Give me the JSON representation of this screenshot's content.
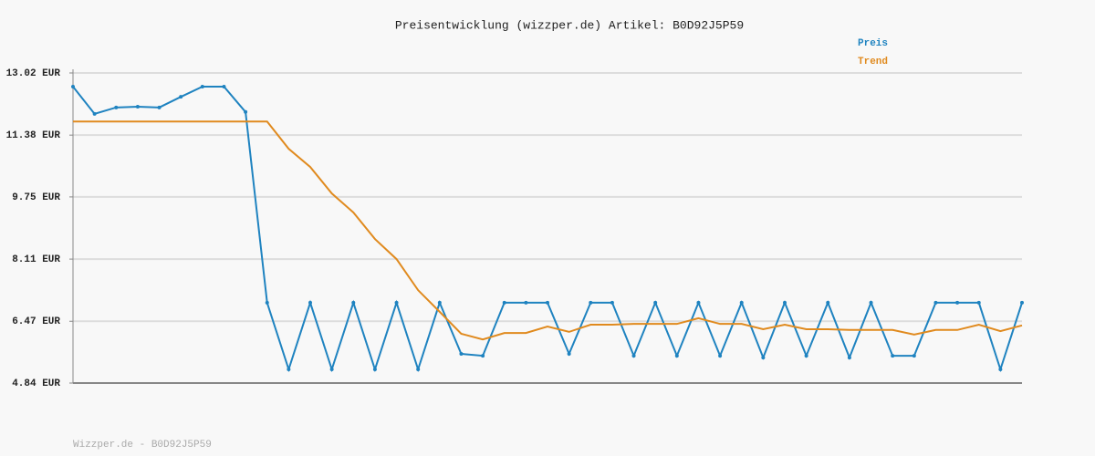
{
  "chart_data": {
    "type": "line",
    "title": "Preisentwicklung (wizzper.de) Artikel: B0D92J5P59",
    "footer": "Wizzper.de - B0D92J5P59",
    "legend": "top-right",
    "grid": true,
    "ylim": [
      4.84,
      13.02
    ],
    "yticks": [
      {
        "value": 4.84,
        "label": "4.84 EUR"
      },
      {
        "value": 6.47,
        "label": "6.47 EUR"
      },
      {
        "value": 8.11,
        "label": "8.11 EUR"
      },
      {
        "value": 9.75,
        "label": "9.75 EUR"
      },
      {
        "value": 11.38,
        "label": "11.38 EUR"
      },
      {
        "value": 13.02,
        "label": "13.02 EUR"
      }
    ],
    "series": [
      {
        "name": "Preis",
        "color": "#1f83c0",
        "markers": true,
        "values": [
          12.66,
          11.94,
          12.11,
          12.13,
          12.11,
          12.39,
          12.66,
          12.66,
          11.99,
          6.96,
          5.2,
          6.96,
          5.2,
          6.96,
          5.2,
          6.96,
          5.2,
          6.96,
          5.61,
          5.56,
          6.96,
          6.96,
          6.96,
          5.61,
          6.96,
          6.96,
          5.56,
          6.96,
          5.56,
          6.96,
          5.56,
          6.96,
          5.51,
          6.96,
          5.56,
          6.96,
          5.51,
          6.96,
          5.56,
          5.56,
          6.96,
          6.96,
          6.96,
          5.2,
          6.96
        ]
      },
      {
        "name": "Trend",
        "color": "#e08a1e",
        "markers": false,
        "values": [
          11.74,
          11.74,
          11.74,
          11.74,
          11.74,
          11.74,
          11.74,
          11.74,
          11.74,
          11.74,
          11.02,
          10.54,
          9.84,
          9.34,
          8.64,
          8.11,
          7.29,
          6.72,
          6.14,
          5.99,
          6.16,
          6.16,
          6.33,
          6.19,
          6.38,
          6.38,
          6.4,
          6.4,
          6.4,
          6.55,
          6.4,
          6.4,
          6.26,
          6.38,
          6.26,
          6.26,
          6.24,
          6.24,
          6.24,
          6.12,
          6.24,
          6.24,
          6.38,
          6.21,
          6.36
        ]
      }
    ]
  }
}
